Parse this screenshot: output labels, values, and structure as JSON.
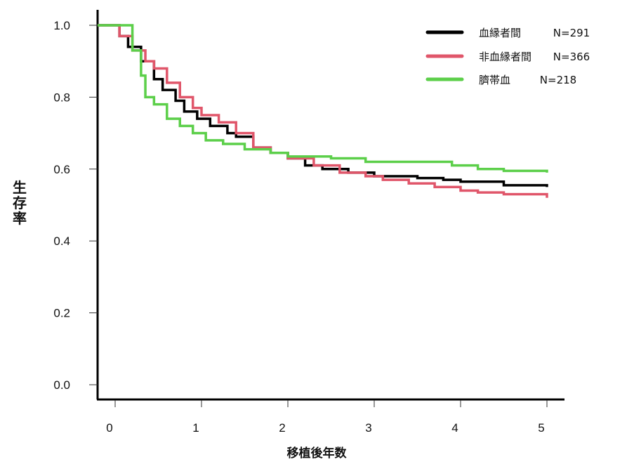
{
  "chart_data": {
    "type": "line",
    "subtype": "kaplan-meier step",
    "title": "",
    "xlabel": "移植後年数",
    "ylabel": "生存率",
    "xlim": [
      0,
      5
    ],
    "ylim": [
      0,
      1.0
    ],
    "x_ticks": [
      "0",
      "1",
      "2",
      "3",
      "4",
      "5"
    ],
    "y_ticks": [
      "0.0",
      "0.2",
      "0.4",
      "0.6",
      "0.8",
      "1.0"
    ],
    "grid": false,
    "legend_position": "top-right",
    "series": [
      {
        "name": "血縁者間",
        "n_label": "N=291",
        "color": "#000000",
        "x": [
          0,
          0.05,
          0.15,
          0.3,
          0.45,
          0.55,
          0.7,
          0.8,
          0.95,
          1.1,
          1.3,
          1.4,
          1.6,
          1.8,
          2.0,
          2.2,
          2.4,
          2.7,
          3.0,
          3.5,
          3.8,
          4.0,
          4.5,
          5.0
        ],
        "values": [
          1.0,
          0.97,
          0.94,
          0.9,
          0.85,
          0.82,
          0.79,
          0.76,
          0.74,
          0.72,
          0.7,
          0.69,
          0.66,
          0.645,
          0.63,
          0.61,
          0.6,
          0.59,
          0.58,
          0.575,
          0.57,
          0.565,
          0.555,
          0.55
        ]
      },
      {
        "name": "非血縁者間",
        "n_label": "N=366",
        "color": "#e0566a",
        "x": [
          0,
          0.05,
          0.2,
          0.35,
          0.45,
          0.6,
          0.75,
          0.9,
          1.0,
          1.2,
          1.4,
          1.6,
          1.8,
          2.0,
          2.3,
          2.6,
          2.9,
          3.1,
          3.4,
          3.7,
          4.0,
          4.2,
          4.5,
          5.0
        ],
        "values": [
          1.0,
          0.97,
          0.93,
          0.9,
          0.88,
          0.84,
          0.8,
          0.77,
          0.75,
          0.73,
          0.7,
          0.66,
          0.645,
          0.63,
          0.61,
          0.59,
          0.58,
          0.57,
          0.56,
          0.55,
          0.54,
          0.535,
          0.53,
          0.52
        ]
      },
      {
        "name": "臍帯血",
        "n_label": "N=218",
        "color": "#5ccf4a",
        "x": [
          0,
          0.13,
          0.2,
          0.3,
          0.35,
          0.45,
          0.6,
          0.75,
          0.9,
          1.05,
          1.25,
          1.5,
          1.8,
          2.0,
          2.5,
          2.9,
          3.5,
          3.9,
          4.2,
          4.5,
          5.0
        ],
        "values": [
          1.0,
          1.0,
          0.93,
          0.86,
          0.8,
          0.78,
          0.74,
          0.72,
          0.7,
          0.68,
          0.67,
          0.655,
          0.645,
          0.635,
          0.63,
          0.62,
          0.62,
          0.61,
          0.6,
          0.595,
          0.59
        ]
      }
    ]
  },
  "legend": {
    "items": [
      {
        "label": "血縁者間",
        "n": "N=291",
        "color": "#000000"
      },
      {
        "label": "非血縁者間",
        "n": "N=366",
        "color": "#e0566a"
      },
      {
        "label": "臍帯血",
        "n": "N=218",
        "color": "#5ccf4a"
      }
    ]
  },
  "axes": {
    "x_title": "移植後年数",
    "y_title_chars": [
      "生",
      "存",
      "率"
    ]
  }
}
